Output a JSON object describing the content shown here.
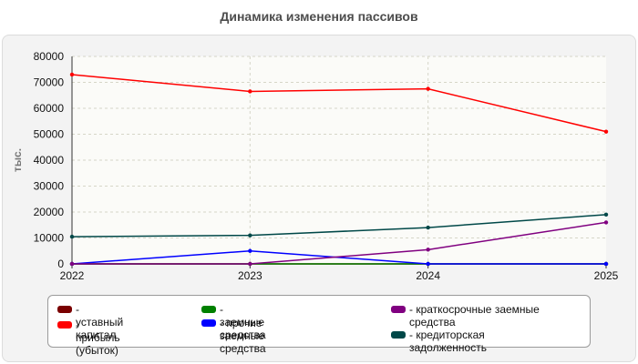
{
  "chart_data": {
    "type": "line",
    "title": "Динамика изменения пассивов",
    "ylabel": "тыс.",
    "xlabel": "",
    "x": [
      "2022",
      "2023",
      "2024",
      "2025"
    ],
    "ylim": [
      0,
      80000
    ],
    "yticks": [
      "0",
      "10000",
      "20000",
      "30000",
      "40000",
      "50000",
      "60000",
      "70000",
      "80000"
    ],
    "grid": true,
    "legend_position": "bottom",
    "series": [
      {
        "name": "- уставный капитал",
        "color": "#7a0000",
        "values": [
          0,
          0,
          0,
          0
        ]
      },
      {
        "name": "- прибыль (убыток)",
        "color": "#ff0000",
        "values": [
          73000,
          66500,
          67500,
          51000
        ]
      },
      {
        "name": "- заемные средства",
        "color": "#008000",
        "values": [
          0,
          0,
          0,
          0
        ]
      },
      {
        "name": "- прочие заемные средства",
        "color": "#0000ff",
        "values": [
          0,
          5000,
          0,
          0
        ]
      },
      {
        "name": "- краткосрочные заемные средства",
        "color": "#800080",
        "values": [
          0,
          0,
          5500,
          16000
        ]
      },
      {
        "name": "- кредиторская задолженность",
        "color": "#004848",
        "values": [
          10500,
          11000,
          14000,
          19000
        ]
      }
    ]
  }
}
